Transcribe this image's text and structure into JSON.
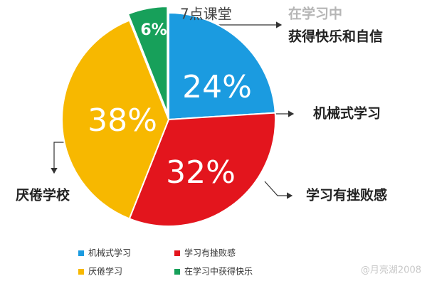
{
  "chart_data": {
    "type": "pie",
    "categories": [
      "机械式学习",
      "学习有挫败感",
      "厌倦学习",
      "在学习中获得快乐"
    ],
    "values": [
      24,
      32,
      38,
      6
    ],
    "value_labels": [
      "24%",
      "32%",
      "38%",
      "6%"
    ],
    "colors": [
      "#1b9be0",
      "#e3151d",
      "#f7b800",
      "#17a05a"
    ],
    "callouts": [
      [
        "机械式学习"
      ],
      [
        "学习有挫败感"
      ],
      [
        "厌倦学校"
      ],
      [
        "在学习中",
        "获得快乐和自信"
      ]
    ],
    "watermarks": [
      "7点课堂",
      "@月亮湖2008"
    ]
  }
}
